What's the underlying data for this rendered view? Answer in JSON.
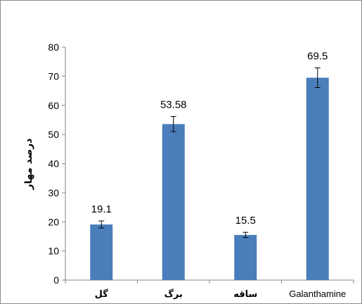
{
  "chart_data": {
    "type": "bar",
    "categories": [
      "گل",
      "برگ",
      "ساقه",
      "Galanthamine"
    ],
    "values": [
      19.1,
      53.58,
      15.5,
      69.5
    ],
    "error": [
      1.2,
      2.6,
      0.9,
      3.4
    ],
    "data_labels": [
      "19.1",
      "53.58",
      "15.5",
      "69.5"
    ],
    "title": "",
    "xlabel": "",
    "ylabel": "درصد مهار",
    "ylim": [
      0,
      80
    ],
    "yticks": [
      0,
      10,
      20,
      30,
      40,
      50,
      60,
      70,
      80
    ],
    "grid": false,
    "legend": "none",
    "bar_color": "#4a7ebb",
    "error_color": "#000000"
  }
}
